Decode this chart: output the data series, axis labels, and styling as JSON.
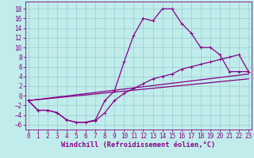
{
  "bg_color": "#c0ecec",
  "line_color": "#880088",
  "xlim": [
    -0.3,
    23.3
  ],
  "ylim": [
    -7.0,
    19.5
  ],
  "yticks": [
    -6,
    -4,
    -2,
    0,
    2,
    4,
    6,
    8,
    10,
    12,
    14,
    16,
    18
  ],
  "xticks": [
    0,
    1,
    2,
    3,
    4,
    5,
    6,
    7,
    8,
    9,
    10,
    11,
    12,
    13,
    14,
    15,
    16,
    17,
    18,
    19,
    20,
    21,
    22,
    23
  ],
  "curve1_x": [
    0,
    1,
    2,
    3,
    4,
    5,
    6,
    7,
    8,
    9,
    10,
    11,
    12,
    13,
    14,
    15,
    16,
    17,
    18,
    19,
    20,
    21,
    22,
    23
  ],
  "curve1_y": [
    -1,
    -3.0,
    -3.0,
    -3.5,
    -5.0,
    -5.5,
    -5.5,
    -5.0,
    -1.0,
    1.0,
    7.0,
    12.5,
    16.0,
    15.5,
    18.0,
    18.0,
    15.0,
    13.0,
    10.0,
    10.0,
    8.5,
    5.0,
    5.0,
    5.0
  ],
  "curve2_x": [
    0,
    1,
    2,
    3,
    4,
    5,
    6,
    7,
    8,
    9,
    10,
    11,
    12,
    13,
    14,
    15,
    16,
    17,
    18,
    19,
    20,
    21,
    22,
    23
  ],
  "curve2_y": [
    -1,
    -3.0,
    -3.0,
    -3.5,
    -5.0,
    -5.5,
    -5.5,
    -5.2,
    -3.5,
    -1.0,
    0.5,
    1.5,
    2.5,
    3.5,
    4.0,
    4.5,
    5.5,
    6.0,
    6.5,
    7.0,
    7.5,
    8.0,
    8.5,
    5.0
  ],
  "line3_x": [
    0,
    23
  ],
  "line3_y": [
    -1.0,
    4.5
  ],
  "line4_x": [
    0,
    23
  ],
  "line4_y": [
    -1.0,
    3.5
  ],
  "xlabel": "Windchill (Refroidissement éolien,°C)",
  "linewidth": 0.9,
  "markersize": 3.5,
  "tick_fontsize": 5.5,
  "xlabel_fontsize": 6.2,
  "grid_color": "#99cccc"
}
